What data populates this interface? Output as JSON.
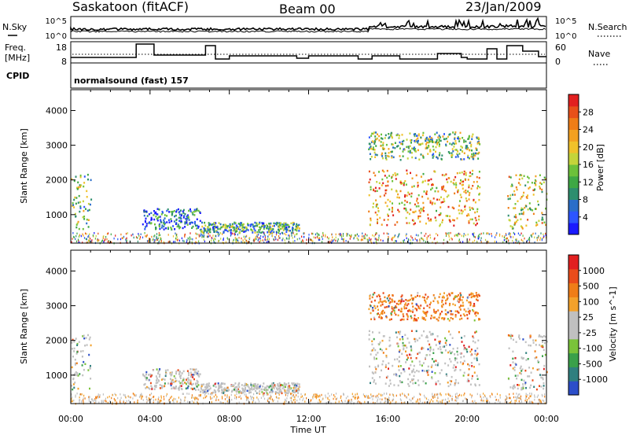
{
  "header": {
    "station": "Saskatoon (fitACF)",
    "beam": "Beam 00",
    "date": "23/Jan/2009"
  },
  "noise_panel": {
    "left_label": "N.Sky",
    "right_label": "N.Search",
    "left_ticks": [
      "10^5",
      "10^0"
    ],
    "right_ticks": [
      "10^5",
      "10^0"
    ]
  },
  "freq_panel": {
    "left_label_1": "Freq.",
    "left_label_2": "[MHz]",
    "right_label": "Nave",
    "left_ticks": [
      "18",
      "8"
    ],
    "right_ticks": [
      "60",
      "0"
    ]
  },
  "cpid_panel": {
    "left_label": "CPID",
    "program": "normalsound (fast) 157"
  },
  "chart_data": [
    {
      "type": "heatmap",
      "title": "",
      "quantity": "Power",
      "xlabel": "",
      "ylabel": "Slant Range [km]",
      "ylim": [
        180,
        4600
      ],
      "yticks": [
        "1000",
        "2000",
        "3000",
        "4000"
      ],
      "xlim_hours": [
        0,
        24
      ],
      "colorbar": {
        "label": "Power [dB]",
        "range": [
          0,
          32
        ],
        "ticks": [
          "4",
          "8",
          "12",
          "16",
          "20",
          "24",
          "28"
        ],
        "colors": [
          "#1a1aff",
          "#2c55ff",
          "#2a6ec9",
          "#2d8e6e",
          "#3ea845",
          "#6cc13a",
          "#c4d43a",
          "#f0c12a",
          "#f3a020",
          "#ef7d17",
          "#e8501a",
          "#e22020"
        ]
      },
      "regions": [
        {
          "start": 0.0,
          "end": 1.0,
          "rmin": 600,
          "rmax": 2200,
          "level": 0.45
        },
        {
          "start": 3.6,
          "end": 6.5,
          "rmin": 600,
          "rmax": 1200,
          "level": 0.2
        },
        {
          "start": 6.5,
          "end": 11.5,
          "rmin": 500,
          "rmax": 800,
          "level": 0.35
        },
        {
          "start": 15.0,
          "end": 20.6,
          "rmin": 700,
          "rmax": 2300,
          "level": 0.7
        },
        {
          "start": 15.0,
          "end": 20.6,
          "rmin": 2600,
          "rmax": 3400,
          "level": 0.45
        },
        {
          "start": 22.0,
          "end": 24.0,
          "rmin": 600,
          "rmax": 2200,
          "level": 0.55
        }
      ]
    },
    {
      "type": "heatmap",
      "title": "",
      "quantity": "Velocity",
      "xlabel": "Time UT",
      "ylabel": "Slant Range [km]",
      "ylim": [
        180,
        4600
      ],
      "yticks": [
        "1000",
        "2000",
        "3000",
        "4000"
      ],
      "xticks": [
        "00:00",
        "04:00",
        "08:00",
        "12:00",
        "16:00",
        "20:00",
        "00:00"
      ],
      "colorbar": {
        "label": "Velocity [m s^-1]",
        "ticks": [
          "1000",
          "500",
          "100",
          "25",
          "-25",
          "-100",
          "-500",
          "-1000"
        ],
        "colors": [
          "#2c4ec9",
          "#2f7f7f",
          "#3aa04a",
          "#7ac33a",
          "#c0c0c0",
          "#c0c0c0",
          "#f3a12a",
          "#ef7d17",
          "#ea4c1a",
          "#e22020"
        ]
      },
      "regions": [
        {
          "start": 0.0,
          "end": 1.0,
          "rmin": 600,
          "rmax": 2200,
          "level": 0.5
        },
        {
          "start": 3.6,
          "end": 6.5,
          "rmin": 600,
          "rmax": 1200,
          "level": 0.65
        },
        {
          "start": 6.5,
          "end": 11.5,
          "rmin": 500,
          "rmax": 800,
          "level": 0.7
        },
        {
          "start": 15.0,
          "end": 20.6,
          "rmin": 700,
          "rmax": 2300,
          "level": 0.5
        },
        {
          "start": 15.0,
          "end": 20.6,
          "rmin": 2600,
          "rmax": 3400,
          "level": 0.8
        },
        {
          "start": 22.0,
          "end": 24.0,
          "rmin": 600,
          "rmax": 2200,
          "level": 0.5
        }
      ]
    }
  ]
}
